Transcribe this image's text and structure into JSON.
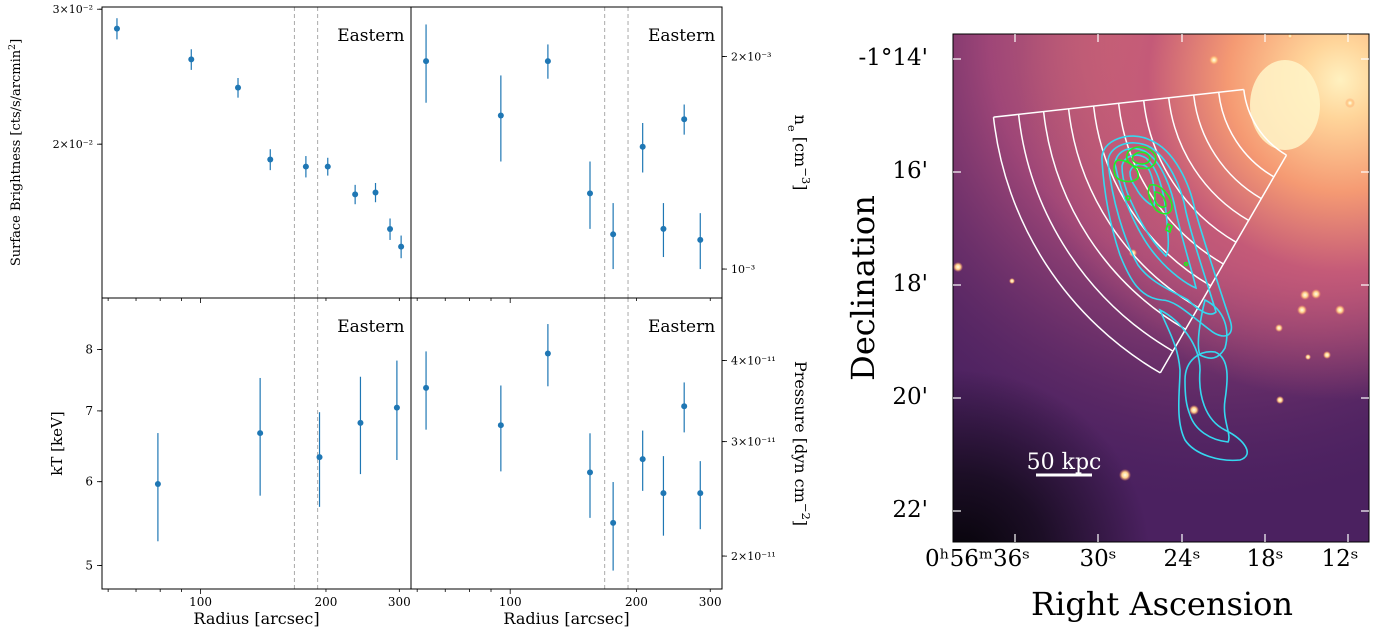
{
  "chart_data": [
    {
      "type": "scatter",
      "panel": "top-left",
      "xscale": "log",
      "yscale": "log",
      "xlim": [
        58,
        320
      ],
      "ylim": [
        0.0126,
        0.0302
      ],
      "ylabel": "Surface Brightness [cts/s/arcmin$^2$]",
      "ytick_labels": [
        {
          "value": 0.03,
          "label": "3×10⁻²"
        },
        {
          "value": 0.02,
          "label": "2×10⁻²"
        }
      ],
      "region_label": "Eastern",
      "vlines": [
        168,
        191
      ],
      "color": "#1f77b4",
      "points": [
        {
          "x": 63,
          "y": 0.0283,
          "err": 0.0009
        },
        {
          "x": 95,
          "y": 0.0258,
          "err": 0.0008
        },
        {
          "x": 123,
          "y": 0.0237,
          "err": 0.0007
        },
        {
          "x": 147,
          "y": 0.0191,
          "err": 0.0006
        },
        {
          "x": 179,
          "y": 0.0187,
          "err": 0.0006
        },
        {
          "x": 202,
          "y": 0.0187,
          "err": 0.0005
        },
        {
          "x": 235,
          "y": 0.0172,
          "err": 0.0005
        },
        {
          "x": 263,
          "y": 0.0173,
          "err": 0.0005
        },
        {
          "x": 285,
          "y": 0.0155,
          "err": 0.0005
        },
        {
          "x": 303,
          "y": 0.0147,
          "err": 0.0005
        }
      ]
    },
    {
      "type": "scatter",
      "panel": "top-right",
      "xscale": "log",
      "yscale": "log",
      "xlim": [
        58,
        320
      ],
      "ylim": [
        0.00091,
        0.00235
      ],
      "ylabel": "n$_e$ [cm$^{-3}$]",
      "ytick_labels": [
        {
          "value": 0.002,
          "label": "2×10⁻³"
        },
        {
          "value": 0.001,
          "label": "10⁻³"
        }
      ],
      "region_label": "Eastern",
      "vlines": [
        168,
        191
      ],
      "color": "#1f77b4",
      "points": [
        {
          "x": 63,
          "y": 0.00197,
          "err": 0.00025
        },
        {
          "x": 95,
          "y": 0.00165,
          "err": 0.00023
        },
        {
          "x": 123,
          "y": 0.00197,
          "err": 0.00011
        },
        {
          "x": 155,
          "y": 0.00128,
          "err": 0.00014
        },
        {
          "x": 176,
          "y": 0.00112,
          "err": 0.00012
        },
        {
          "x": 207,
          "y": 0.00149,
          "err": 0.00012
        },
        {
          "x": 232,
          "y": 0.00114,
          "err": 0.0001
        },
        {
          "x": 260,
          "y": 0.00163,
          "err": 8e-05
        },
        {
          "x": 284,
          "y": 0.0011,
          "err": 0.0001
        }
      ]
    },
    {
      "type": "scatter",
      "panel": "bottom-left",
      "xscale": "log",
      "yscale": "log",
      "xlim": [
        58,
        320
      ],
      "ylim": [
        4.75,
        8.95
      ],
      "xlabel": "Radius [arcsec]",
      "ylabel": "kT [keV]",
      "xticks": [
        100,
        200,
        300
      ],
      "yticks": [
        5,
        6,
        7,
        8
      ],
      "region_label": "Eastern",
      "vlines": [
        168,
        191
      ],
      "color": "#1f77b4",
      "points": [
        {
          "x": 79,
          "y": 5.97,
          "err": 0.7
        },
        {
          "x": 139,
          "y": 6.67,
          "err": 0.85
        },
        {
          "x": 193,
          "y": 6.33,
          "err": 0.65
        },
        {
          "x": 242,
          "y": 6.82,
          "err": 0.72
        },
        {
          "x": 296,
          "y": 7.05,
          "err": 0.76
        }
      ]
    },
    {
      "type": "scatter",
      "panel": "bottom-right",
      "xscale": "log",
      "yscale": "log",
      "xlim": [
        58,
        320
      ],
      "ylim": [
        1.78e-11,
        4.99e-11
      ],
      "xlabel": "Radius [arcsec]",
      "ylabel": "Pressure [dyn cm$^{-2}$]",
      "xticks": [
        100,
        200,
        300
      ],
      "ytick_labels": [
        {
          "value": 4e-11,
          "label": "4×10⁻¹¹"
        },
        {
          "value": 3e-11,
          "label": "3×10⁻¹¹"
        },
        {
          "value": 2e-11,
          "label": "2×10⁻¹¹"
        }
      ],
      "region_label": "Eastern",
      "vlines": [
        168,
        191
      ],
      "color": "#1f77b4",
      "points": [
        {
          "x": 63,
          "y": 3.63e-11,
          "err": 5e-12
        },
        {
          "x": 95,
          "y": 3.18e-11,
          "err": 4.8e-12
        },
        {
          "x": 123,
          "y": 4.1e-11,
          "err": 4.5e-12
        },
        {
          "x": 155,
          "y": 2.69e-11,
          "err": 4e-12
        },
        {
          "x": 176,
          "y": 2.25e-11,
          "err": 3.5e-12
        },
        {
          "x": 207,
          "y": 2.82e-11,
          "err": 3e-12
        },
        {
          "x": 232,
          "y": 2.5e-11,
          "err": 3.5e-12
        },
        {
          "x": 260,
          "y": 3.4e-11,
          "err": 3e-12
        },
        {
          "x": 284,
          "y": 2.5e-11,
          "err": 3e-12
        }
      ]
    }
  ],
  "sky_image": {
    "ylabel": "Declination",
    "xlabel": "Right Ascension",
    "dec_ticks": [
      "-1°14'",
      "16'",
      "18'",
      "20'",
      "22'"
    ],
    "ra_ticks": [
      "0ʰ56ᵐ36ˢ",
      "30ˢ",
      "24ˢ",
      "18ˢ",
      "12ˢ"
    ],
    "scalebar_label": "50 kpc",
    "colors": {
      "background": "#4a2060",
      "contour_radio": "#35d8f0",
      "contour_green": "#22ee22",
      "sectors": "#ffffff"
    }
  }
}
